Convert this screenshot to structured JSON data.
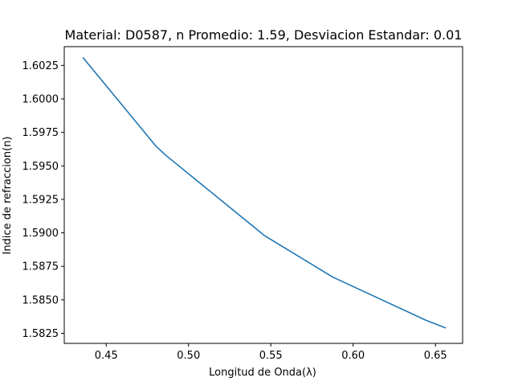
{
  "chart_data": {
    "type": "line",
    "title": "Material: D0587, n Promedio: 1.59, Desviacion Estandar: 0.01",
    "xlabel": "Longitud de Onda(λ)",
    "ylabel": "Indice de refraccion(n)",
    "xlim": [
      0.4245,
      0.6665
    ],
    "ylim": [
      1.58175,
      1.6039
    ],
    "xticks": [
      0.45,
      0.5,
      0.55,
      0.6,
      0.65
    ],
    "xtick_labels": [
      "0.45",
      "0.50",
      "0.55",
      "0.60",
      "0.65"
    ],
    "yticks": [
      1.5825,
      1.585,
      1.5875,
      1.59,
      1.5925,
      1.595,
      1.5975,
      1.6,
      1.6025
    ],
    "ytick_labels": [
      "1.5825",
      "1.5850",
      "1.5875",
      "1.5900",
      "1.5925",
      "1.5950",
      "1.5975",
      "1.6000",
      "1.6025"
    ],
    "grid": false,
    "series": [
      {
        "color": "#1f77b4",
        "x": [
          0.4358,
          0.48,
          0.4861,
          0.5461,
          0.5876,
          0.6438,
          0.6563
        ],
        "y": [
          1.6031,
          1.5965,
          1.5958,
          1.5898,
          1.5867,
          1.5835,
          1.5829
        ]
      }
    ]
  }
}
